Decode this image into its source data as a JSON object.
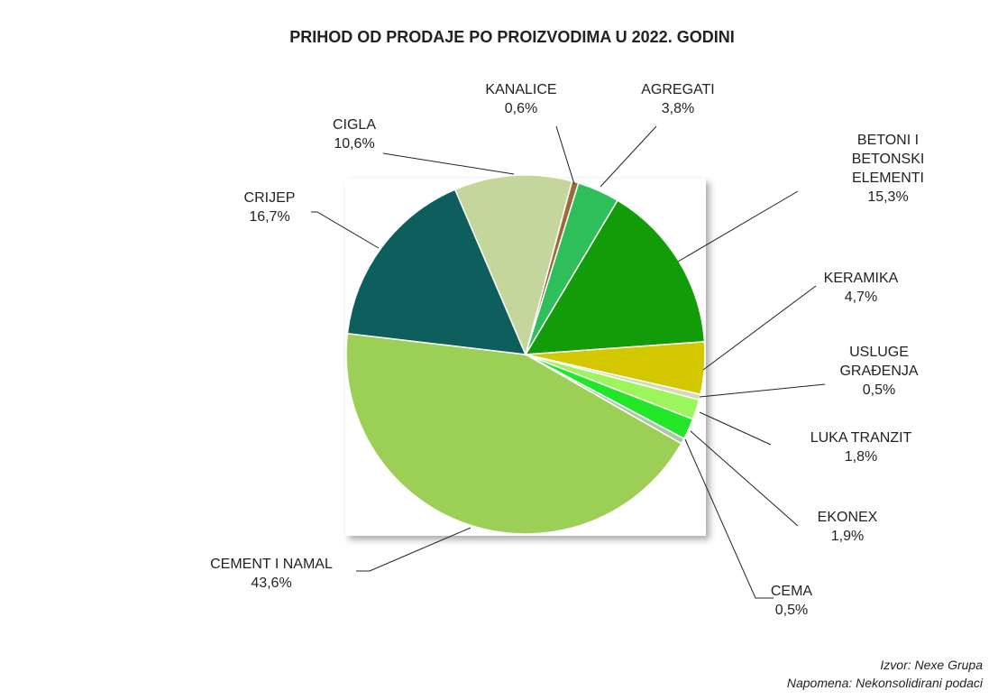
{
  "chart_data": {
    "type": "pie",
    "title": "PRIHOD OD PRODAJE  PO PROIZVODIMA  U 2022. GODINI",
    "categories": [
      "KANALICE",
      "AGREGATI",
      "BETONI I\nBETONSKI\nELEMENTI",
      "KERAMIKA",
      "USLUGE\nGRAĐENJA",
      "LUKA TRANZIT",
      "EKONEX",
      "CEMA",
      "CEMENT I NAMAL",
      "CRIJEP",
      "CIGLA"
    ],
    "values": [
      0.6,
      3.8,
      15.3,
      4.7,
      0.5,
      1.8,
      1.9,
      0.5,
      43.6,
      16.7,
      10.6
    ],
    "value_labels": [
      "0,6%",
      "3,8%",
      "15,3%",
      "4,7%",
      "0,5%",
      "1,8%",
      "1,9%",
      "0,5%",
      "43,6%",
      "16,7%",
      "10,6%"
    ],
    "colors": [
      "#9c6b3c",
      "#2fbf5a",
      "#129c08",
      "#d3c800",
      "#d8d8b8",
      "#9cf55a",
      "#22e628",
      "#a8c8a8",
      "#9bcf55",
      "#0d5f5e",
      "#c4d69c"
    ],
    "source": "Izvor: Nexe Grupa",
    "note": "Napomena: Nekonsolidirani podaci"
  }
}
